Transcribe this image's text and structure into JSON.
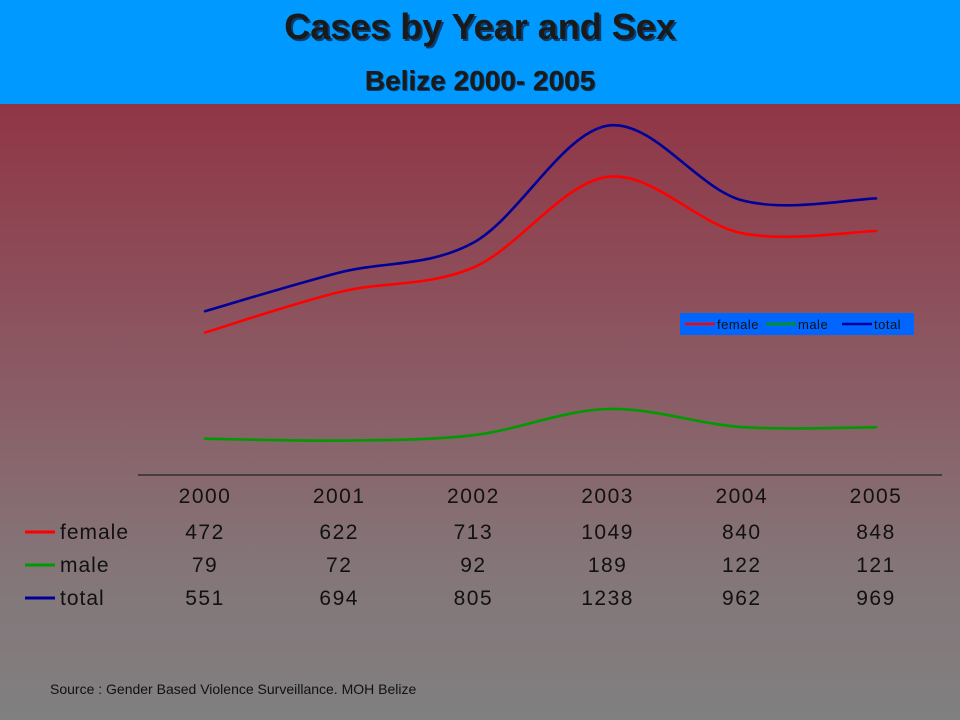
{
  "header": {
    "title": "Cases by Year and Sex",
    "subtitle": "Belize 2000- 2005"
  },
  "source": "Source : Gender Based Violence Surveillance. MOH Belize",
  "chart_data": {
    "type": "line",
    "title": "Cases by Year and Sex",
    "subtitle": "Belize 2000- 2005",
    "x": [
      "2000",
      "2001",
      "2002",
      "2003",
      "2004",
      "2005"
    ],
    "ylim": [
      0,
      1300
    ],
    "grid": false,
    "legend": {
      "placement": "right",
      "entries": [
        "female",
        "male",
        "total"
      ]
    },
    "series": [
      {
        "name": "female",
        "values": [
          472,
          622,
          713,
          1049,
          840,
          848
        ],
        "color": "#ff0000"
      },
      {
        "name": "male",
        "values": [
          79,
          72,
          92,
          189,
          122,
          121
        ],
        "color": "#009900"
      },
      {
        "name": "total",
        "values": [
          551,
          694,
          805,
          1238,
          962,
          969
        ],
        "color": "#000099"
      }
    ],
    "data_table": {
      "rows": [
        {
          "label": "female",
          "values": [
            "472",
            "622",
            "713",
            "1049",
            "840",
            "848"
          ]
        },
        {
          "label": "male",
          "values": [
            "79",
            "72",
            "92",
            "189",
            "122",
            "121"
          ]
        },
        {
          "label": "total",
          "values": [
            "551",
            "694",
            "805",
            "1238",
            "962",
            "969"
          ]
        }
      ]
    },
    "legend_bg": "#0066ff"
  }
}
